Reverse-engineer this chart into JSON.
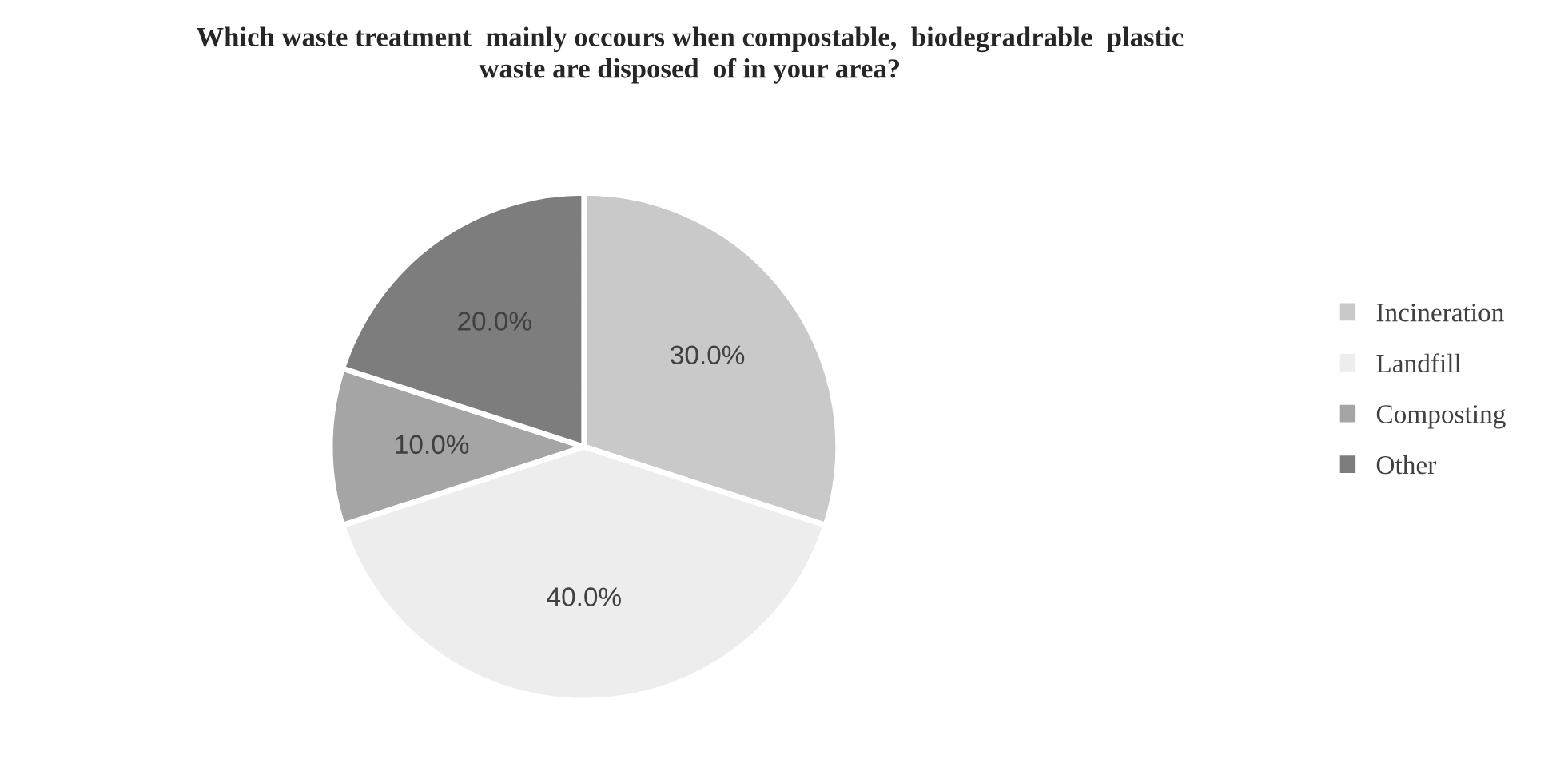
{
  "chart_data": {
    "type": "pie",
    "title": "Which waste treatment  mainly occours when compostable,  biodegradrable  plastic\nwaste are disposed  of in your area?",
    "categories": [
      "Incineration",
      "Landfill",
      "Composting",
      "Other"
    ],
    "values": [
      30,
      40,
      10,
      20
    ],
    "value_labels": [
      "30.0%",
      "40.0%",
      "10.0%",
      "20.0%"
    ],
    "colors": [
      "#c9c9c9",
      "#ededed",
      "#a5a5a5",
      "#7d7d7d"
    ],
    "legend": "right"
  }
}
